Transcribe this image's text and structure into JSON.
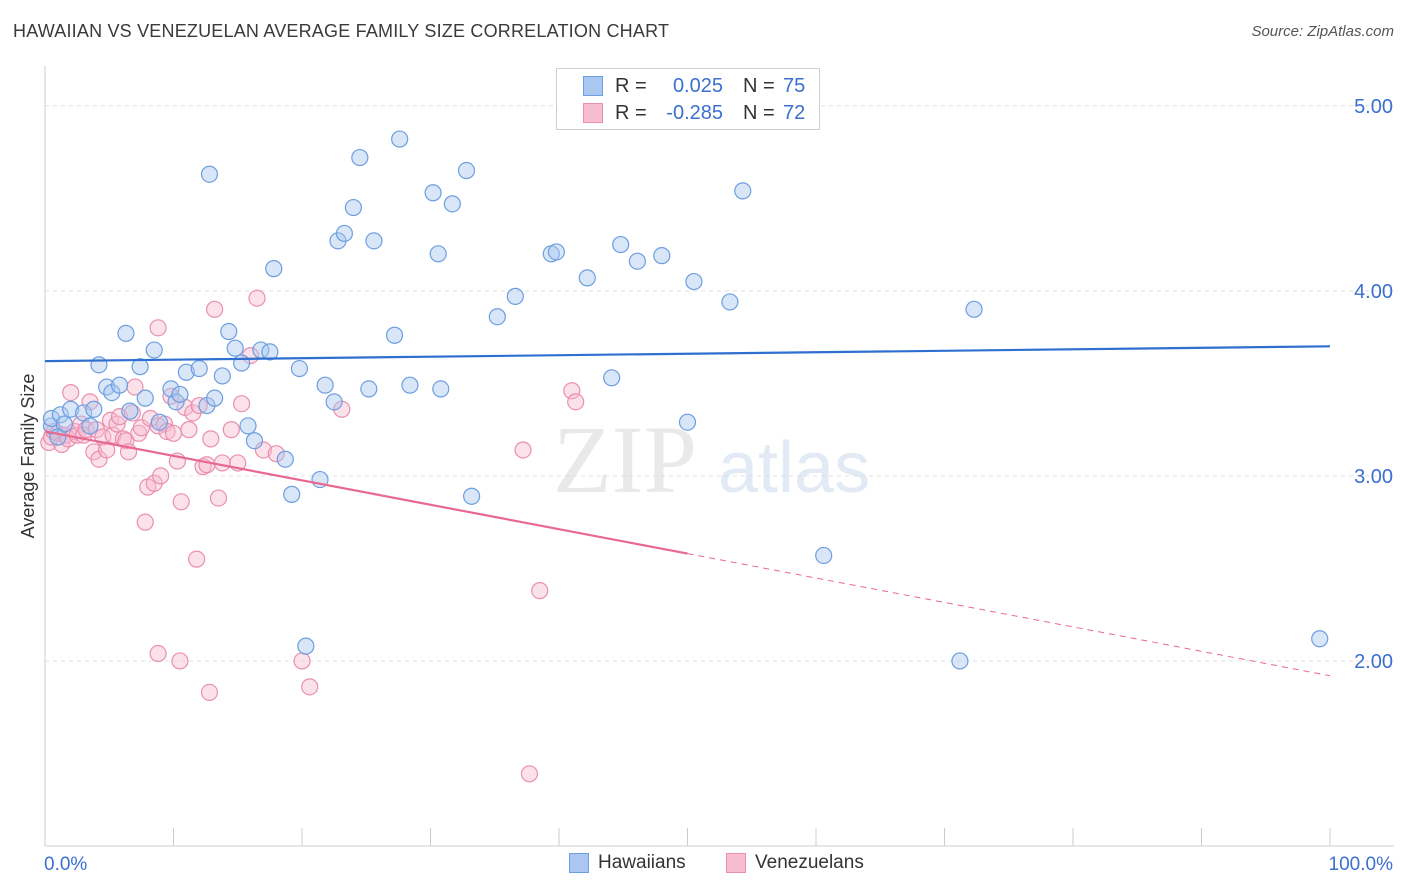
{
  "title": "HAWAIIAN VS VENEZUELAN AVERAGE FAMILY SIZE CORRELATION CHART",
  "source": "Source: ZipAtlas.com",
  "watermark": {
    "zip": "ZIP",
    "atlas": "atlas"
  },
  "legend_top": {
    "rows": [
      {
        "r_label": "R =",
        "r_value": "0.025",
        "n_label": "N =",
        "n_value": "75"
      },
      {
        "r_label": "R =",
        "r_value": "-0.285",
        "n_label": "N =",
        "n_value": "72"
      }
    ]
  },
  "legend_bottom": {
    "items": [
      "Hawaiians",
      "Venezuelans"
    ]
  },
  "colors": {
    "hawaiian_fill": "#a9c7f0",
    "hawaiian_stroke": "#6d9ee0",
    "hawaiian_line": "#2f6fd0",
    "venezuelan_fill": "#f7bcd0",
    "venezuelan_stroke": "#ea8fb0",
    "venezuelan_line": "#e8698f",
    "tick_label": "#3b6fd0",
    "grid": "#e2e2e2"
  },
  "chart_data": {
    "type": "scatter",
    "title": "HAWAIIAN VS VENEZUELAN AVERAGE FAMILY SIZE CORRELATION CHART",
    "xlabel": "",
    "ylabel": "Average Family Size",
    "xlim": [
      0,
      100
    ],
    "ylim": [
      1.0,
      5.15
    ],
    "x_tick_labels": [
      "0.0%",
      "100.0%"
    ],
    "y_ticks": [
      2.0,
      3.0,
      4.0,
      5.0
    ],
    "y_tick_labels": [
      "2.00",
      "3.00",
      "4.00",
      "5.00"
    ],
    "grid": true,
    "series": [
      {
        "name": "Hawaiians",
        "trend": {
          "x": [
            0,
            100
          ],
          "y": [
            3.62,
            3.7
          ]
        },
        "points": [
          [
            0.5,
            3.27
          ],
          [
            0.5,
            3.31
          ],
          [
            1.2,
            3.33
          ],
          [
            1.5,
            3.28
          ],
          [
            2,
            3.36
          ],
          [
            3,
            3.34
          ],
          [
            3.5,
            3.27
          ],
          [
            3.8,
            3.36
          ],
          [
            4.2,
            3.6
          ],
          [
            4.8,
            3.48
          ],
          [
            5.2,
            3.45
          ],
          [
            5.8,
            3.49
          ],
          [
            6.3,
            3.77
          ],
          [
            6.6,
            3.35
          ],
          [
            7.4,
            3.59
          ],
          [
            7.8,
            3.42
          ],
          [
            8.5,
            3.68
          ],
          [
            8.9,
            3.29
          ],
          [
            9.8,
            3.47
          ],
          [
            10.2,
            3.4
          ],
          [
            10.5,
            3.44
          ],
          [
            11,
            3.56
          ],
          [
            12,
            3.58
          ],
          [
            12.6,
            3.38
          ],
          [
            12.8,
            4.63
          ],
          [
            13.2,
            3.42
          ],
          [
            13.8,
            3.54
          ],
          [
            14.3,
            3.78
          ],
          [
            14.8,
            3.69
          ],
          [
            15.3,
            3.61
          ],
          [
            15.8,
            3.27
          ],
          [
            16.3,
            3.19
          ],
          [
            16.8,
            3.68
          ],
          [
            17.5,
            3.67
          ],
          [
            17.8,
            4.12
          ],
          [
            18.7,
            3.09
          ],
          [
            19.2,
            2.9
          ],
          [
            19.8,
            3.58
          ],
          [
            20.3,
            2.08
          ],
          [
            21.4,
            2.98
          ],
          [
            21.8,
            3.49
          ],
          [
            22.5,
            3.4
          ],
          [
            22.8,
            4.27
          ],
          [
            23.3,
            4.31
          ],
          [
            24,
            4.45
          ],
          [
            24.5,
            4.72
          ],
          [
            25.2,
            3.47
          ],
          [
            25.6,
            4.27
          ],
          [
            27.2,
            3.76
          ],
          [
            27.6,
            4.82
          ],
          [
            28.4,
            3.49
          ],
          [
            30.2,
            4.53
          ],
          [
            30.6,
            4.2
          ],
          [
            30.8,
            3.47
          ],
          [
            31.7,
            4.47
          ],
          [
            32.8,
            4.65
          ],
          [
            33.2,
            2.89
          ],
          [
            35.2,
            3.86
          ],
          [
            36.6,
            3.97
          ],
          [
            39.4,
            4.2
          ],
          [
            39.8,
            4.21
          ],
          [
            42.2,
            4.07
          ],
          [
            44.1,
            3.53
          ],
          [
            44.8,
            4.25
          ],
          [
            46.1,
            4.16
          ],
          [
            48,
            4.19
          ],
          [
            50,
            3.29
          ],
          [
            50.5,
            4.05
          ],
          [
            53.3,
            3.94
          ],
          [
            54.3,
            4.54
          ],
          [
            60.6,
            2.57
          ],
          [
            71.2,
            2.0
          ],
          [
            72.3,
            3.9
          ],
          [
            99.2,
            2.12
          ],
          [
            1.0,
            3.21
          ]
        ]
      },
      {
        "name": "Venezuelans",
        "trend": {
          "x": [
            0,
            50
          ],
          "y": [
            3.24,
            2.58
          ]
        },
        "trend_dashed": {
          "x": [
            50,
            100
          ],
          "y": [
            2.58,
            1.92
          ]
        },
        "points": [
          [
            0.3,
            3.18
          ],
          [
            0.5,
            3.21
          ],
          [
            0.7,
            3.24
          ],
          [
            1,
            3.23
          ],
          [
            1.3,
            3.17
          ],
          [
            1.6,
            3.22
          ],
          [
            1.8,
            3.2
          ],
          [
            2,
            3.45
          ],
          [
            2.3,
            3.24
          ],
          [
            2.5,
            3.22
          ],
          [
            2.8,
            3.28
          ],
          [
            3,
            3.22
          ],
          [
            3.2,
            3.25
          ],
          [
            3.5,
            3.4
          ],
          [
            3.8,
            3.13
          ],
          [
            4,
            3.25
          ],
          [
            4.2,
            3.09
          ],
          [
            4.5,
            3.21
          ],
          [
            4.8,
            3.14
          ],
          [
            5.1,
            3.3
          ],
          [
            5.3,
            3.22
          ],
          [
            5.6,
            3.28
          ],
          [
            5.8,
            3.32
          ],
          [
            6.1,
            3.2
          ],
          [
            6.3,
            3.19
          ],
          [
            6.5,
            3.13
          ],
          [
            6.8,
            3.34
          ],
          [
            7,
            3.48
          ],
          [
            7.3,
            3.23
          ],
          [
            7.5,
            3.26
          ],
          [
            7.8,
            2.75
          ],
          [
            8,
            2.94
          ],
          [
            8.2,
            3.31
          ],
          [
            8.5,
            2.96
          ],
          [
            8.8,
            3.27
          ],
          [
            9,
            3.0
          ],
          [
            9.3,
            3.28
          ],
          [
            9.5,
            3.24
          ],
          [
            9.8,
            3.43
          ],
          [
            10,
            3.23
          ],
          [
            10.3,
            3.08
          ],
          [
            10.6,
            2.86
          ],
          [
            10.9,
            3.37
          ],
          [
            11.2,
            3.25
          ],
          [
            11.5,
            3.34
          ],
          [
            11.8,
            2.55
          ],
          [
            12,
            3.38
          ],
          [
            12.3,
            3.05
          ],
          [
            12.6,
            3.06
          ],
          [
            12.9,
            3.2
          ],
          [
            13.2,
            3.9
          ],
          [
            13.5,
            2.88
          ],
          [
            13.8,
            3.07
          ],
          [
            14.5,
            3.25
          ],
          [
            15,
            3.07
          ],
          [
            15.3,
            3.39
          ],
          [
            16,
            3.65
          ],
          [
            16.5,
            3.96
          ],
          [
            17,
            3.14
          ],
          [
            18,
            3.12
          ],
          [
            8.8,
            2.04
          ],
          [
            10.5,
            2.0
          ],
          [
            12.8,
            1.83
          ],
          [
            20,
            2.0
          ],
          [
            20.6,
            1.86
          ],
          [
            23.1,
            3.36
          ],
          [
            37.2,
            3.14
          ],
          [
            38.5,
            2.38
          ],
          [
            41,
            3.46
          ],
          [
            41.3,
            3.4
          ],
          [
            37.7,
            1.39
          ],
          [
            8.8,
            3.8
          ]
        ]
      }
    ]
  }
}
